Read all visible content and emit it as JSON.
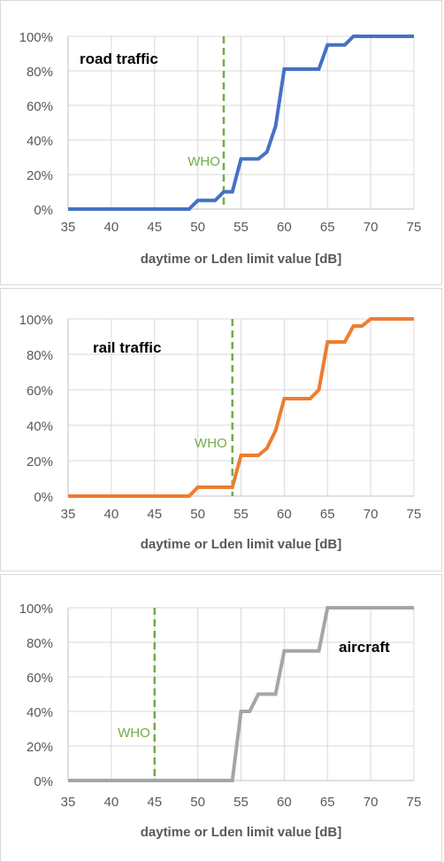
{
  "colors": {
    "grid": "#d9d9d9",
    "axis": "#bfbfbf",
    "tick_text": "#595959",
    "who": "#70ad47"
  },
  "chart_data": [
    {
      "type": "line",
      "title": "",
      "xlabel": "daytime or Lden limit value [dB]",
      "ylabel": "",
      "xlim": [
        35,
        75
      ],
      "ylim": [
        0,
        100
      ],
      "x_ticks": [
        35,
        40,
        45,
        50,
        55,
        60,
        65,
        70,
        75
      ],
      "y_ticks": [
        "0%",
        "20%",
        "40%",
        "60%",
        "80%",
        "100%"
      ],
      "grid": true,
      "series": [
        {
          "name": "road traffic",
          "color": "#4472c4",
          "x": [
            35,
            49,
            50,
            52,
            53,
            54,
            55,
            57,
            58,
            59,
            60,
            64,
            65,
            67,
            68,
            75
          ],
          "y": [
            0,
            0,
            5,
            5,
            10,
            10,
            29,
            29,
            33,
            48,
            81,
            81,
            95,
            95,
            100,
            100
          ]
        }
      ],
      "reference_line": {
        "label": "WHO",
        "x": 53
      }
    },
    {
      "type": "line",
      "title": "",
      "xlabel": "daytime or Lden limit value [dB]",
      "ylabel": "",
      "xlim": [
        35,
        75
      ],
      "ylim": [
        0,
        100
      ],
      "x_ticks": [
        35,
        40,
        45,
        50,
        55,
        60,
        65,
        70,
        75
      ],
      "y_ticks": [
        "0%",
        "20%",
        "40%",
        "60%",
        "80%",
        "100%"
      ],
      "grid": true,
      "series": [
        {
          "name": "rail traffic",
          "color": "#ed7d31",
          "x": [
            35,
            49,
            50,
            54,
            55,
            57,
            58,
            59,
            60,
            63,
            64,
            65,
            67,
            68,
            69,
            70,
            75
          ],
          "y": [
            0,
            0,
            5,
            5,
            23,
            23,
            27,
            37,
            55,
            55,
            60,
            87,
            87,
            96,
            96,
            100,
            100
          ]
        }
      ],
      "reference_line": {
        "label": "WHO",
        "x": 54
      }
    },
    {
      "type": "line",
      "title": "",
      "xlabel": "daytime or Lden limit value [dB]",
      "ylabel": "",
      "xlim": [
        35,
        75
      ],
      "ylim": [
        0,
        100
      ],
      "x_ticks": [
        35,
        40,
        45,
        50,
        55,
        60,
        65,
        70,
        75
      ],
      "y_ticks": [
        "0%",
        "20%",
        "40%",
        "60%",
        "80%",
        "100%"
      ],
      "grid": true,
      "series": [
        {
          "name": "aircraft",
          "color": "#a5a5a5",
          "x": [
            35,
            54,
            55,
            56,
            57,
            59,
            60,
            64,
            65,
            75
          ],
          "y": [
            0,
            0,
            40,
            40,
            50,
            50,
            75,
            75,
            100,
            100
          ]
        }
      ],
      "reference_line": {
        "label": "WHO",
        "x": 45
      }
    }
  ]
}
